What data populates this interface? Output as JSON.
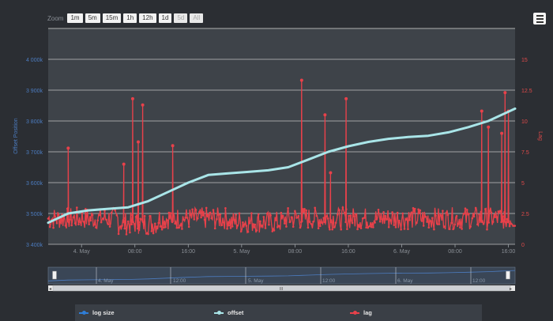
{
  "zoom": {
    "label": "Zoom",
    "buttons": [
      {
        "label": "1m",
        "enabled": true
      },
      {
        "label": "5m",
        "enabled": true
      },
      {
        "label": "15m",
        "enabled": true
      },
      {
        "label": "1h",
        "enabled": true
      },
      {
        "label": "12h",
        "enabled": true
      },
      {
        "label": "1d",
        "enabled": true
      },
      {
        "label": "5d",
        "enabled": false
      },
      {
        "label": "All",
        "enabled": false
      }
    ]
  },
  "menu_icon": "hamburger-menu-icon",
  "navigator": {
    "labels": [
      "4. May",
      "12:00",
      "5. May",
      "12:00",
      "6. May",
      "12:00"
    ],
    "scroll_grip": "III"
  },
  "colors": {
    "background": "#2b2e33",
    "plot": "#3e4349",
    "grid": "#d8d8d8",
    "offset": "#a9e5e8",
    "lag": "#e8414a",
    "log_size": "#2f7ed8",
    "left_axis": "#4c7cc0",
    "right_axis": "#e04a4a"
  },
  "chart_data": {
    "type": "line",
    "x_axis": {
      "type": "datetime",
      "tick_labels": [
        "4. May",
        "08:00",
        "16:00",
        "5. May",
        "08:00",
        "16:00",
        "6. May",
        "08:00",
        "16:00"
      ],
      "range": [
        "2024-05-03T19:00",
        "2024-05-06T17:00"
      ]
    },
    "y_axis_left": {
      "label": "Offset Position",
      "tick_labels": [
        "3 400k",
        "3 500k",
        "3 600k",
        "3 700k",
        "3 800k",
        "3 900k",
        "4 000k"
      ],
      "range": [
        3400000,
        4100000
      ]
    },
    "y_axis_right": {
      "label": "Lag",
      "tick_labels": [
        "0",
        "2.5",
        "5",
        "7.5",
        "10",
        "12.5",
        "15"
      ],
      "range": [
        0,
        17.5
      ]
    },
    "grid": true,
    "legend_position": "bottom",
    "series": [
      {
        "name": "log size",
        "axis": "left",
        "points": []
      },
      {
        "name": "offset",
        "axis": "left",
        "x": [
          "2024-05-03T19:00",
          "2024-05-03T22:00",
          "2024-05-04T01:00",
          "2024-05-04T04:00",
          "2024-05-04T07:00",
          "2024-05-04T10:00",
          "2024-05-04T13:00",
          "2024-05-04T16:00",
          "2024-05-04T19:00",
          "2024-05-04T22:00",
          "2024-05-05T01:00",
          "2024-05-05T04:00",
          "2024-05-05T07:00",
          "2024-05-05T10:00",
          "2024-05-05T13:00",
          "2024-05-05T16:00",
          "2024-05-05T19:00",
          "2024-05-05T22:00",
          "2024-05-06T01:00",
          "2024-05-06T04:00",
          "2024-05-06T07:00",
          "2024-05-06T10:00",
          "2024-05-06T13:00",
          "2024-05-06T17:00"
        ],
        "y": [
          3470000,
          3500000,
          3510000,
          3515000,
          3520000,
          3540000,
          3570000,
          3600000,
          3625000,
          3630000,
          3635000,
          3640000,
          3650000,
          3675000,
          3700000,
          3718000,
          3732000,
          3742000,
          3748000,
          3752000,
          3763000,
          3780000,
          3800000,
          3840000
        ]
      },
      {
        "name": "lag",
        "axis": "right",
        "baseline_typical": [
          1.2,
          3.0
        ],
        "spikes": [
          {
            "x": "2024-05-03T22:00",
            "y": 7.8
          },
          {
            "x": "2024-05-04T06:20",
            "y": 6.5
          },
          {
            "x": "2024-05-04T07:40",
            "y": 11.8
          },
          {
            "x": "2024-05-04T08:30",
            "y": 8.3
          },
          {
            "x": "2024-05-04T09:10",
            "y": 11.3
          },
          {
            "x": "2024-05-04T13:40",
            "y": 8.0
          },
          {
            "x": "2024-05-05T09:00",
            "y": 13.3
          },
          {
            "x": "2024-05-05T12:30",
            "y": 10.5
          },
          {
            "x": "2024-05-05T13:20",
            "y": 5.8
          },
          {
            "x": "2024-05-05T15:40",
            "y": 11.8
          },
          {
            "x": "2024-05-06T12:00",
            "y": 10.8
          },
          {
            "x": "2024-05-06T13:00",
            "y": 9.5
          },
          {
            "x": "2024-05-06T15:00",
            "y": 9.0
          },
          {
            "x": "2024-05-06T15:30",
            "y": 12.3
          },
          {
            "x": "2024-05-06T16:00",
            "y": 10.8
          }
        ]
      }
    ]
  }
}
